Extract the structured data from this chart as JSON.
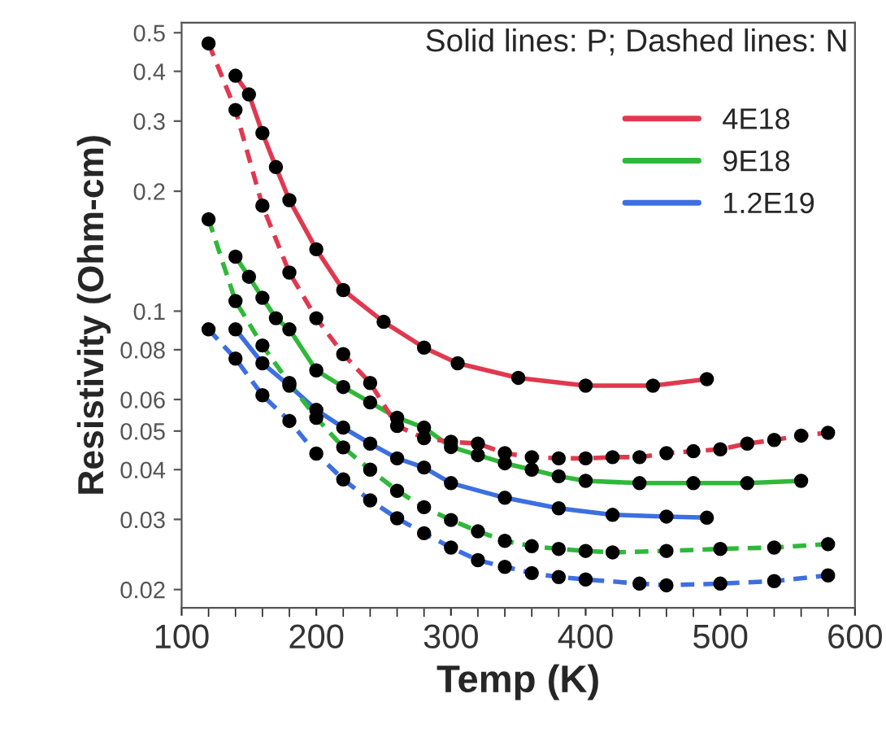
{
  "chart_data": {
    "type": "line",
    "xlabel": "Temp (K)",
    "ylabel": "Resistivity (Ohm-cm)",
    "log": "y",
    "xlim": [
      100,
      600
    ],
    "xticks": [
      100,
      200,
      300,
      400,
      500,
      600
    ],
    "ylim": [
      0.018,
      0.53
    ],
    "yticks": [
      0.02,
      0.03,
      0.04,
      0.05,
      0.06,
      0.08,
      0.1,
      0.2,
      0.3,
      0.4,
      0.5
    ],
    "grid": false,
    "legend": "top right",
    "marker": "circle",
    "annotations": [
      "Solid lines: P; Dashed lines: N"
    ],
    "series": [
      {
        "name": "4E18",
        "color": "#e0394f",
        "line_style": "solid",
        "x": [
          140,
          150,
          160,
          170,
          180,
          200,
          220,
          250,
          280,
          305,
          350,
          400,
          450,
          490
        ],
        "values": [
          0.39,
          0.35,
          0.28,
          0.23,
          0.19,
          0.143,
          0.113,
          0.094,
          0.081,
          0.074,
          0.068,
          0.065,
          0.065,
          0.0675
        ]
      },
      {
        "name": "9E18",
        "color": "#2fb83a",
        "line_style": "solid",
        "x": [
          140,
          150,
          160,
          170,
          180,
          200,
          220,
          240,
          260,
          280,
          300,
          320,
          340,
          360,
          380,
          400,
          440,
          480,
          520,
          560
        ],
        "values": [
          0.137,
          0.122,
          0.108,
          0.096,
          0.09,
          0.071,
          0.0645,
          0.059,
          0.054,
          0.051,
          0.0456,
          0.0435,
          0.0415,
          0.04,
          0.0385,
          0.0375,
          0.037,
          0.037,
          0.037,
          0.0375
        ]
      },
      {
        "name": "1.2E19",
        "color": "#3d6fe0",
        "line_style": "solid",
        "x": [
          140,
          160,
          180,
          200,
          220,
          240,
          260,
          280,
          300,
          340,
          380,
          420,
          460,
          490
        ],
        "values": [
          0.09,
          0.074,
          0.065,
          0.0565,
          0.051,
          0.0465,
          0.0427,
          0.0405,
          0.037,
          0.034,
          0.032,
          0.0308,
          0.0305,
          0.0303
        ]
      },
      {
        "color": "#e0394f",
        "line_style": "dashed",
        "x": [
          120,
          140,
          160,
          180,
          200,
          220,
          240,
          260,
          280,
          300,
          320,
          340,
          360,
          380,
          400,
          420,
          440,
          460,
          480,
          500,
          520,
          540,
          560,
          580
        ],
        "values": [
          0.47,
          0.32,
          0.184,
          0.125,
          0.096,
          0.078,
          0.066,
          0.0515,
          0.048,
          0.047,
          0.0465,
          0.044,
          0.043,
          0.0427,
          0.0427,
          0.043,
          0.043,
          0.044,
          0.0445,
          0.045,
          0.0465,
          0.0475,
          0.0487,
          0.0495
        ]
      },
      {
        "color": "#2fb83a",
        "line_style": "dashed",
        "x": [
          120,
          140,
          160,
          180,
          200,
          220,
          240,
          260,
          280,
          300,
          320,
          340,
          360,
          380,
          400,
          420,
          460,
          500,
          540,
          580
        ],
        "values": [
          0.17,
          0.106,
          0.082,
          0.066,
          0.054,
          0.0455,
          0.04,
          0.0354,
          0.0322,
          0.0299,
          0.028,
          0.0265,
          0.0257,
          0.0253,
          0.025,
          0.0248,
          0.025,
          0.0253,
          0.0255,
          0.026
        ]
      },
      {
        "color": "#3d6fe0",
        "line_style": "dashed",
        "x": [
          120,
          140,
          160,
          180,
          200,
          220,
          240,
          260,
          280,
          300,
          320,
          340,
          360,
          380,
          400,
          440,
          460,
          500,
          540,
          580
        ],
        "values": [
          0.09,
          0.076,
          0.0615,
          0.053,
          0.0439,
          0.0378,
          0.0335,
          0.0302,
          0.0277,
          0.0255,
          0.0237,
          0.0228,
          0.022,
          0.0215,
          0.0212,
          0.0207,
          0.0205,
          0.0207,
          0.021,
          0.0217
        ]
      }
    ]
  }
}
